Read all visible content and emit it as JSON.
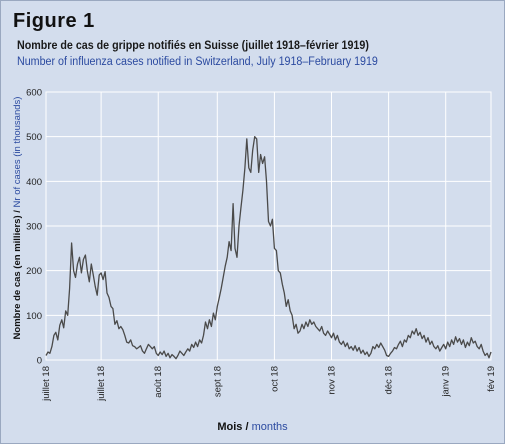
{
  "figure_label": "Figure 1",
  "title_fr": "Nombre de cas de grippe notifiés en Suisse (juillet 1918–février 1919)",
  "title_en": "Number of influenza cases notified in Switzerland, July 1918–February 1919",
  "xlabel_fr": "Mois / ",
  "xlabel_en": "months",
  "ylabel_fr": "Nombre de cas (en milliers) / ",
  "ylabel_en": "Nr of cases (in thousands)",
  "colors": {
    "line": "#4a4a4a",
    "grid": "#ffffff",
    "plot_bg": "#d3dded",
    "blue_text": "#2b4aa0"
  },
  "chart_data": {
    "type": "line",
    "title": "Number of influenza cases notified in Switzerland, July 1918–February 1919",
    "ylim": [
      0,
      600
    ],
    "yticks": [
      0,
      100,
      200,
      300,
      400,
      500,
      600
    ],
    "xlim": [
      0,
      226
    ],
    "xticks": [
      {
        "x": 0,
        "label": "juillet 18"
      },
      {
        "x": 28,
        "label": "juillet 18"
      },
      {
        "x": 57,
        "label": "août 18"
      },
      {
        "x": 87,
        "label": "sept 18"
      },
      {
        "x": 116,
        "label": "oct 18"
      },
      {
        "x": 145,
        "label": "nov 18"
      },
      {
        "x": 174,
        "label": "déc 18"
      },
      {
        "x": 203,
        "label": "janv 19"
      },
      {
        "x": 226,
        "label": "fév 19"
      }
    ],
    "grid": true,
    "series": [
      {
        "points": [
          [
            0,
            10
          ],
          [
            1,
            18
          ],
          [
            2,
            15
          ],
          [
            3,
            30
          ],
          [
            4,
            55
          ],
          [
            5,
            62
          ],
          [
            6,
            45
          ],
          [
            7,
            78
          ],
          [
            8,
            90
          ],
          [
            9,
            72
          ],
          [
            10,
            110
          ],
          [
            11,
            100
          ],
          [
            12,
            160
          ],
          [
            13,
            262
          ],
          [
            14,
            200
          ],
          [
            15,
            185
          ],
          [
            16,
            215
          ],
          [
            17,
            230
          ],
          [
            18,
            195
          ],
          [
            19,
            225
          ],
          [
            20,
            235
          ],
          [
            21,
            200
          ],
          [
            22,
            175
          ],
          [
            23,
            215
          ],
          [
            24,
            190
          ],
          [
            25,
            165
          ],
          [
            26,
            145
          ],
          [
            27,
            190
          ],
          [
            28,
            195
          ],
          [
            29,
            180
          ],
          [
            30,
            198
          ],
          [
            31,
            150
          ],
          [
            32,
            140
          ],
          [
            33,
            120
          ],
          [
            34,
            115
          ],
          [
            35,
            80
          ],
          [
            36,
            88
          ],
          [
            37,
            70
          ],
          [
            38,
            75
          ],
          [
            39,
            68
          ],
          [
            40,
            55
          ],
          [
            41,
            40
          ],
          [
            42,
            38
          ],
          [
            43,
            45
          ],
          [
            44,
            32
          ],
          [
            45,
            30
          ],
          [
            46,
            25
          ],
          [
            47,
            28
          ],
          [
            48,
            32
          ],
          [
            49,
            20
          ],
          [
            50,
            15
          ],
          [
            51,
            25
          ],
          [
            52,
            35
          ],
          [
            53,
            30
          ],
          [
            54,
            25
          ],
          [
            55,
            30
          ],
          [
            56,
            15
          ],
          [
            57,
            10
          ],
          [
            58,
            18
          ],
          [
            59,
            12
          ],
          [
            60,
            20
          ],
          [
            61,
            8
          ],
          [
            62,
            15
          ],
          [
            63,
            5
          ],
          [
            64,
            12
          ],
          [
            65,
            8
          ],
          [
            66,
            3
          ],
          [
            67,
            10
          ],
          [
            68,
            20
          ],
          [
            69,
            15
          ],
          [
            70,
            10
          ],
          [
            71,
            18
          ],
          [
            72,
            25
          ],
          [
            73,
            20
          ],
          [
            74,
            35
          ],
          [
            75,
            28
          ],
          [
            76,
            40
          ],
          [
            77,
            30
          ],
          [
            78,
            45
          ],
          [
            79,
            38
          ],
          [
            80,
            55
          ],
          [
            81,
            85
          ],
          [
            82,
            70
          ],
          [
            83,
            90
          ],
          [
            84,
            75
          ],
          [
            85,
            105
          ],
          [
            86,
            90
          ],
          [
            87,
            120
          ],
          [
            88,
            140
          ],
          [
            89,
            160
          ],
          [
            90,
            185
          ],
          [
            91,
            210
          ],
          [
            92,
            230
          ],
          [
            93,
            265
          ],
          [
            94,
            245
          ],
          [
            95,
            350
          ],
          [
            96,
            250
          ],
          [
            97,
            230
          ],
          [
            98,
            300
          ],
          [
            99,
            340
          ],
          [
            100,
            380
          ],
          [
            101,
            430
          ],
          [
            102,
            495
          ],
          [
            103,
            430
          ],
          [
            104,
            420
          ],
          [
            105,
            470
          ],
          [
            106,
            500
          ],
          [
            107,
            495
          ],
          [
            108,
            420
          ],
          [
            109,
            460
          ],
          [
            110,
            440
          ],
          [
            111,
            455
          ],
          [
            112,
            400
          ],
          [
            113,
            310
          ],
          [
            114,
            300
          ],
          [
            115,
            315
          ],
          [
            116,
            250
          ],
          [
            117,
            245
          ],
          [
            118,
            200
          ],
          [
            119,
            195
          ],
          [
            120,
            170
          ],
          [
            121,
            150
          ],
          [
            122,
            120
          ],
          [
            123,
            135
          ],
          [
            124,
            110
          ],
          [
            125,
            100
          ],
          [
            126,
            70
          ],
          [
            127,
            80
          ],
          [
            128,
            60
          ],
          [
            129,
            65
          ],
          [
            130,
            80
          ],
          [
            131,
            70
          ],
          [
            132,
            85
          ],
          [
            133,
            75
          ],
          [
            134,
            90
          ],
          [
            135,
            80
          ],
          [
            136,
            85
          ],
          [
            137,
            75
          ],
          [
            138,
            70
          ],
          [
            139,
            65
          ],
          [
            140,
            75
          ],
          [
            141,
            60
          ],
          [
            142,
            55
          ],
          [
            143,
            65
          ],
          [
            144,
            58
          ],
          [
            145,
            50
          ],
          [
            146,
            60
          ],
          [
            147,
            45
          ],
          [
            148,
            55
          ],
          [
            149,
            40
          ],
          [
            150,
            35
          ],
          [
            151,
            42
          ],
          [
            152,
            30
          ],
          [
            153,
            38
          ],
          [
            154,
            25
          ],
          [
            155,
            30
          ],
          [
            156,
            22
          ],
          [
            157,
            32
          ],
          [
            158,
            20
          ],
          [
            159,
            28
          ],
          [
            160,
            15
          ],
          [
            161,
            22
          ],
          [
            162,
            12
          ],
          [
            163,
            18
          ],
          [
            164,
            8
          ],
          [
            165,
            15
          ],
          [
            166,
            30
          ],
          [
            167,
            25
          ],
          [
            168,
            35
          ],
          [
            169,
            28
          ],
          [
            170,
            38
          ],
          [
            171,
            30
          ],
          [
            172,
            22
          ],
          [
            173,
            10
          ],
          [
            174,
            8
          ],
          [
            175,
            15
          ],
          [
            176,
            20
          ],
          [
            177,
            28
          ],
          [
            178,
            25
          ],
          [
            179,
            35
          ],
          [
            180,
            42
          ],
          [
            181,
            30
          ],
          [
            182,
            45
          ],
          [
            183,
            40
          ],
          [
            184,
            55
          ],
          [
            185,
            50
          ],
          [
            186,
            65
          ],
          [
            187,
            58
          ],
          [
            188,
            70
          ],
          [
            189,
            55
          ],
          [
            190,
            62
          ],
          [
            191,
            48
          ],
          [
            192,
            55
          ],
          [
            193,
            40
          ],
          [
            194,
            50
          ],
          [
            195,
            35
          ],
          [
            196,
            42
          ],
          [
            197,
            30
          ],
          [
            198,
            25
          ],
          [
            199,
            32
          ],
          [
            200,
            20
          ],
          [
            201,
            28
          ],
          [
            202,
            35
          ],
          [
            203,
            25
          ],
          [
            204,
            40
          ],
          [
            205,
            30
          ],
          [
            206,
            45
          ],
          [
            207,
            35
          ],
          [
            208,
            52
          ],
          [
            209,
            40
          ],
          [
            210,
            48
          ],
          [
            211,
            35
          ],
          [
            212,
            45
          ],
          [
            213,
            28
          ],
          [
            214,
            40
          ],
          [
            215,
            32
          ],
          [
            216,
            50
          ],
          [
            217,
            38
          ],
          [
            218,
            42
          ],
          [
            219,
            30
          ],
          [
            220,
            25
          ],
          [
            221,
            35
          ],
          [
            222,
            20
          ],
          [
            223,
            10
          ],
          [
            224,
            15
          ],
          [
            225,
            5
          ],
          [
            226,
            18
          ]
        ]
      }
    ]
  }
}
